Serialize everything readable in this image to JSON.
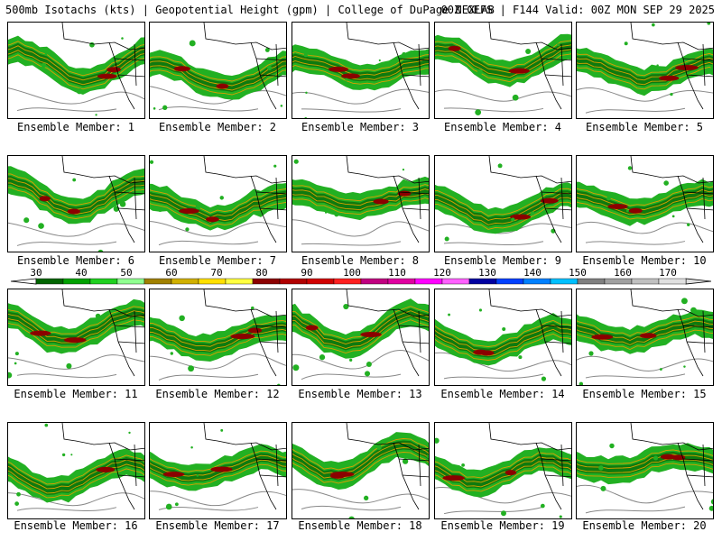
{
  "header": {
    "title_left": "500mb Isotachs (kts) | Geopotential Height (gpm) | College of DuPage NEXLAB",
    "title_right": "00Z GEFS | F144 Valid: 00Z MON SEP 29 2025"
  },
  "members": [
    {
      "label": "Ensemble Member: 1"
    },
    {
      "label": "Ensemble Member: 2"
    },
    {
      "label": "Ensemble Member: 3"
    },
    {
      "label": "Ensemble Member: 4"
    },
    {
      "label": "Ensemble Member: 5"
    },
    {
      "label": "Ensemble Member: 6"
    },
    {
      "label": "Ensemble Member: 7"
    },
    {
      "label": "Ensemble Member: 8"
    },
    {
      "label": "Ensemble Member: 9"
    },
    {
      "label": "Ensemble Member: 10"
    },
    {
      "label": "Ensemble Member: 11"
    },
    {
      "label": "Ensemble Member: 12"
    },
    {
      "label": "Ensemble Member: 13"
    },
    {
      "label": "Ensemble Member: 14"
    },
    {
      "label": "Ensemble Member: 15"
    },
    {
      "label": "Ensemble Member: 16"
    },
    {
      "label": "Ensemble Member: 17"
    },
    {
      "label": "Ensemble Member: 18"
    },
    {
      "label": "Ensemble Member: 19"
    },
    {
      "label": "Ensemble Member: 20"
    }
  ],
  "colorbar": {
    "tick_labels": [
      "30",
      "40",
      "50",
      "60",
      "70",
      "80",
      "90",
      "100",
      "110",
      "120",
      "130",
      "140",
      "150",
      "160",
      "170"
    ],
    "colors": [
      "#006400",
      "#00a000",
      "#20d020",
      "#90ff90",
      "#a08000",
      "#d0b000",
      "#ffe000",
      "#ffff40",
      "#8b0000",
      "#b00000",
      "#d00000",
      "#ff2020",
      "#c00080",
      "#e000a0",
      "#ff00ff",
      "#ff60ff",
      "#0000a0",
      "#0040ff",
      "#0080ff",
      "#00c0ff",
      "#808080",
      "#a0a0a0",
      "#c0c0c0",
      "#e0e0e0"
    ]
  },
  "map_colors": {
    "jet_green": "#22b022",
    "jet_dark_green": "#0e7a0e",
    "jet_core": "#8b0000",
    "isotach_line": "#d8a000",
    "height_contour": "#888888",
    "coastline": "#000000"
  }
}
